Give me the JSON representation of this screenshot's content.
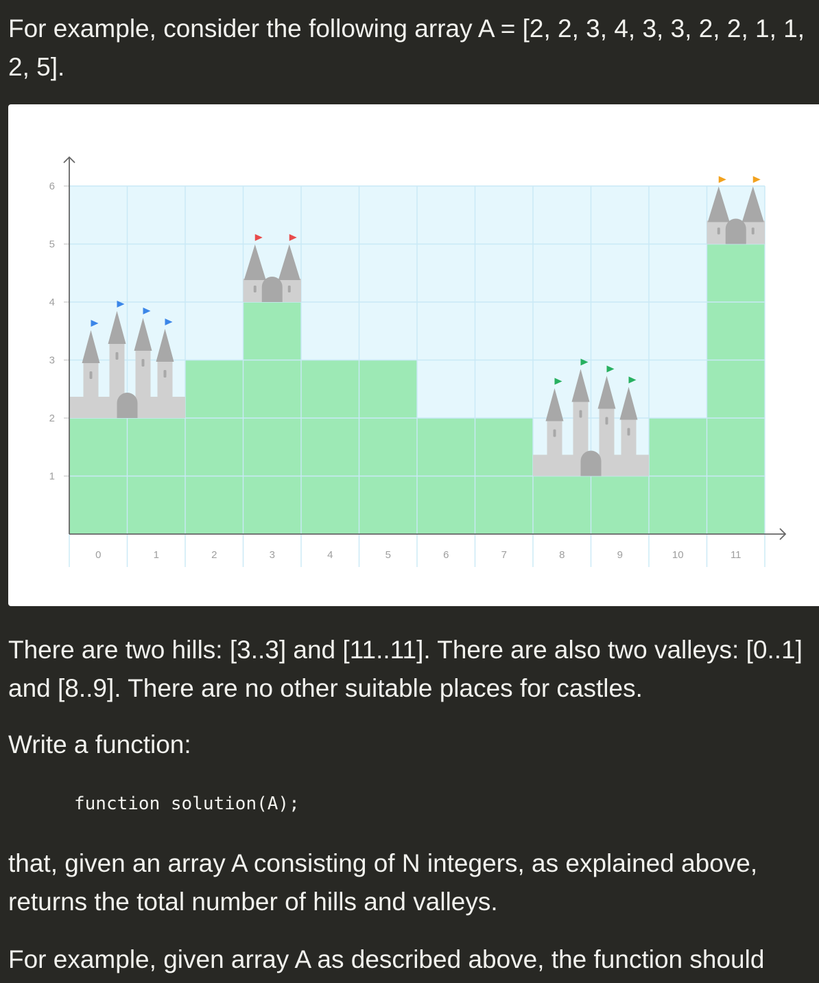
{
  "intro": {
    "line1": "For example, consider the following array A = [2, 2, 3, 4, 3, 3, 2, 2, 1, 1,",
    "line2": "2, 5]."
  },
  "explanation": {
    "line1": "There are two hills: [3..3] and [11..11]. There are also two valleys: [0..1]",
    "line2": "and [8..9]. There are no other suitable places for castles."
  },
  "write_prompt": "Write a function:",
  "code_signature": "function solution(A);",
  "returns": {
    "line1": "that, given an array A consisting of N integers, as explained above,",
    "line2": "returns the total number of hills and valleys."
  },
  "example_tail": "For example, given array A as described above, the function should",
  "chart_data": {
    "type": "bar",
    "categories": [
      "0",
      "1",
      "2",
      "3",
      "4",
      "5",
      "6",
      "7",
      "8",
      "9",
      "10",
      "11"
    ],
    "values": [
      2,
      2,
      3,
      4,
      3,
      3,
      2,
      2,
      1,
      1,
      2,
      5
    ],
    "y_ticks": [
      "1",
      "2",
      "3",
      "4",
      "5",
      "6"
    ],
    "ylim": [
      0,
      6
    ],
    "grid": true,
    "legend": "none",
    "castles": [
      {
        "name": "valley-castle-0-1",
        "type": "valley",
        "start": 0,
        "end": 1,
        "flag_color": "#3b86e8"
      },
      {
        "name": "hill-castle-3",
        "type": "hill",
        "start": 3,
        "end": 3,
        "flag_color": "#e84b4b"
      },
      {
        "name": "valley-castle-8-9",
        "type": "valley",
        "start": 8,
        "end": 9,
        "flag_color": "#27b060"
      },
      {
        "name": "hill-castle-11",
        "type": "hill",
        "start": 11,
        "end": 11,
        "flag_color": "#f2a21e"
      }
    ],
    "colors": {
      "terrain": "#9de9b5",
      "sky": "#e5f7fd",
      "grid": "#c9e9f6",
      "castle": "#d0d0d0",
      "tower": "#a8a8a8",
      "window": "#a8a8a8",
      "axis": "#666666"
    }
  }
}
